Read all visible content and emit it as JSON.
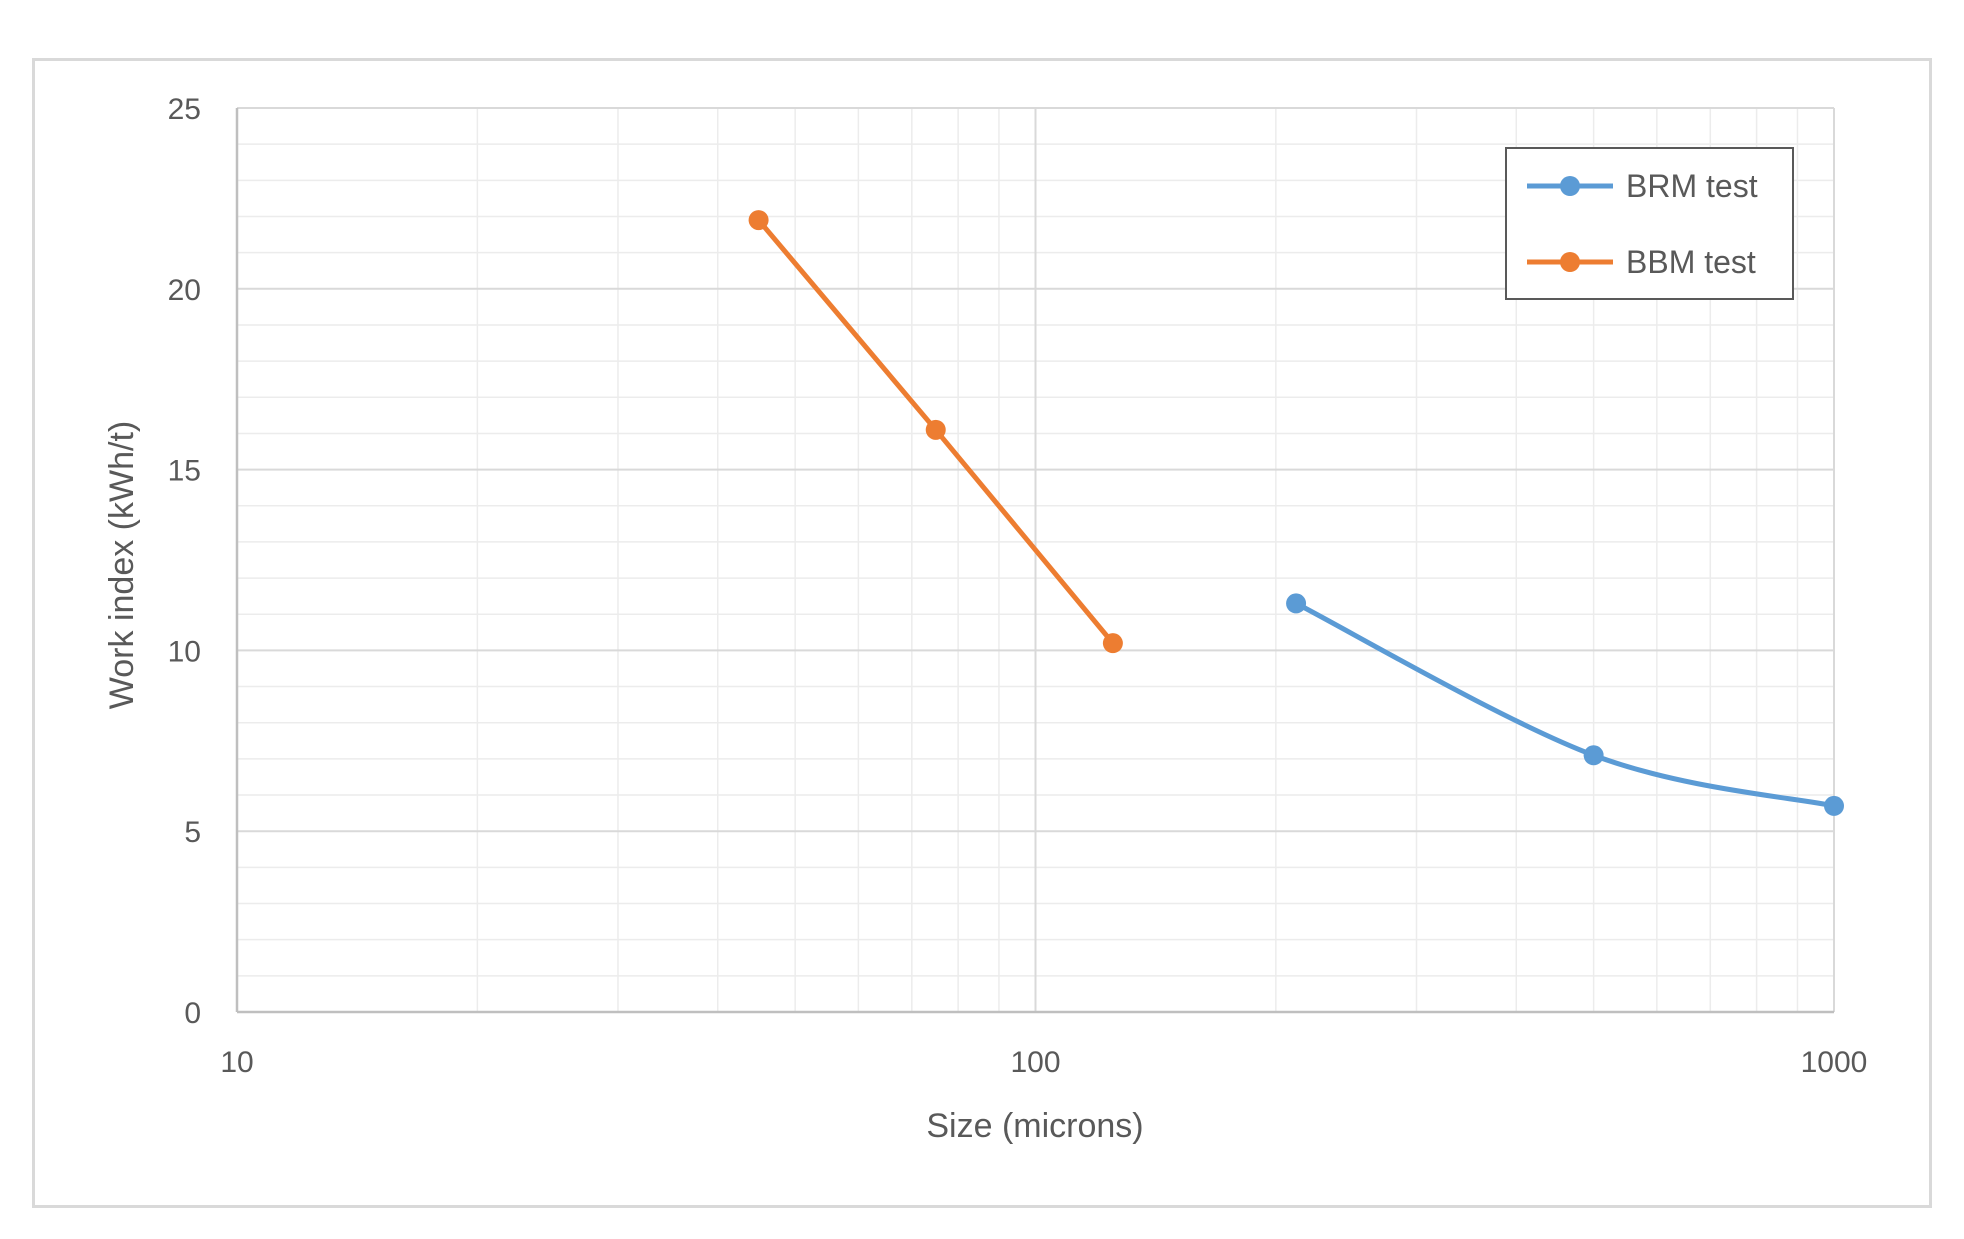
{
  "chart_data": {
    "type": "line",
    "title": "",
    "xlabel": "Size (microns)",
    "ylabel": "Work index (kWh/t)",
    "xscale": "log",
    "xlim": [
      10,
      1000
    ],
    "ylim": [
      0,
      25
    ],
    "xticks": [
      10,
      100,
      1000
    ],
    "xtick_labels": [
      "10",
      "100",
      "1000"
    ],
    "yticks": [
      0,
      5,
      10,
      15,
      20,
      25
    ],
    "ytick_labels": [
      "0",
      "5",
      "10",
      "15",
      "20",
      "25"
    ],
    "grid": true,
    "legend_position": "top-right",
    "series": [
      {
        "name": "BRM test",
        "color": "#5b9bd5",
        "smooth": true,
        "points": [
          {
            "x": 212,
            "y": 11.3
          },
          {
            "x": 500,
            "y": 7.1
          },
          {
            "x": 1000,
            "y": 5.7
          }
        ]
      },
      {
        "name": "BBM test",
        "color": "#ed7d31",
        "smooth": false,
        "points": [
          {
            "x": 45,
            "y": 21.9
          },
          {
            "x": 75,
            "y": 16.1
          },
          {
            "x": 125,
            "y": 10.2
          }
        ]
      }
    ]
  }
}
